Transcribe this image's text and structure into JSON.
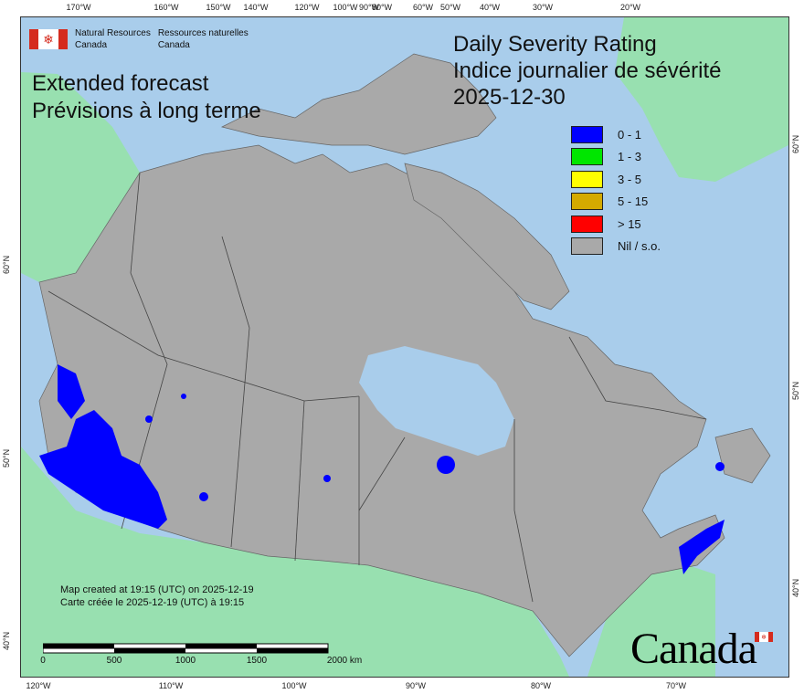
{
  "ticks": {
    "top": [
      "170°W",
      "160°W",
      "150°W",
      "140°W",
      "120°W",
      "100°W",
      "90°W",
      "80°W",
      "60°W",
      "50°W",
      "40°W",
      "30°W",
      "20°W"
    ],
    "bottom": [
      "120°W",
      "110°W",
      "100°W",
      "90°W",
      "80°W",
      "70°W"
    ],
    "left": [
      "60°N",
      "50°N",
      "40°N"
    ],
    "right": [
      "60°N",
      "50°N",
      "40°N"
    ]
  },
  "logo": {
    "en_line1": "Natural Resources",
    "en_line2": "Canada",
    "fr_line1": "Ressources naturelles",
    "fr_line2": "Canada"
  },
  "title_left": {
    "line1": "Extended forecast",
    "line2": "Prévisions à long terme"
  },
  "title_right": {
    "line1": "Daily Severity Rating",
    "line2": "Indice journalier de sévérité",
    "date": "2025-12-30"
  },
  "legend": [
    {
      "label": "0 - 1",
      "color": "#0000ff"
    },
    {
      "label": "1 - 3",
      "color": "#00e600"
    },
    {
      "label": "3 - 5",
      "color": "#ffff00"
    },
    {
      "label": "5 - 15",
      "color": "#d4aa00"
    },
    {
      "label": "> 15",
      "color": "#ff0000"
    },
    {
      "label": "Nil / s.o.",
      "color": "#a9a9a9"
    }
  ],
  "footer": {
    "en": "Map created at 19:15 (UTC) on 2025-12-19",
    "fr": "Carte créée le 2025-12-19 (UTC) à 19:15"
  },
  "scale": {
    "labels": [
      "0",
      "500",
      "1000",
      "1500",
      "2000  km"
    ]
  },
  "wordmark": "Canada",
  "colors": {
    "water": "#a9cdeb",
    "other_land": "#98e0b0",
    "canada_nil": "#a9a9a9",
    "rating_0_1": "#0000ff"
  }
}
